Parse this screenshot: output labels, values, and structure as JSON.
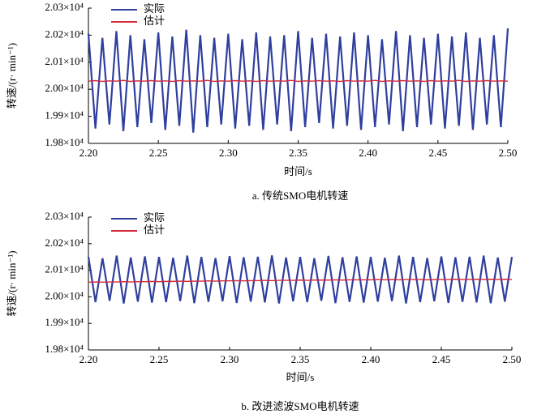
{
  "chart_data": [
    {
      "type": "line",
      "caption": "a. 传统SMO电机转速",
      "xlabel": "时间/s",
      "ylabel": "转速/(r· min⁻¹)",
      "legend": "upper left",
      "xlim": [
        2.2,
        2.5
      ],
      "ylim": [
        19800,
        20300
      ],
      "xticks": [
        {
          "value": 2.2,
          "label": "2.20"
        },
        {
          "value": 2.25,
          "label": "2.25"
        },
        {
          "value": 2.3,
          "label": "2.30"
        },
        {
          "value": 2.35,
          "label": "2.35"
        },
        {
          "value": 2.4,
          "label": "2.40"
        },
        {
          "value": 2.45,
          "label": "2.45"
        },
        {
          "value": 2.5,
          "label": "2.50"
        }
      ],
      "yticks": [
        {
          "value": 19800,
          "label": "1.98×10⁴"
        },
        {
          "value": 19900,
          "label": "1.99×10⁴"
        },
        {
          "value": 20000,
          "label": "2.00×10⁴"
        },
        {
          "value": 20100,
          "label": "2.01×10⁴"
        },
        {
          "value": 20200,
          "label": "2.02×10⁴"
        },
        {
          "value": 20300,
          "label": "2.03×10⁴"
        }
      ],
      "x": [
        2.2,
        2.205,
        2.21,
        2.215,
        2.22,
        2.225,
        2.23,
        2.235,
        2.24,
        2.245,
        2.25,
        2.255,
        2.26,
        2.265,
        2.27,
        2.275,
        2.28,
        2.285,
        2.29,
        2.295,
        2.3,
        2.305,
        2.31,
        2.315,
        2.32,
        2.325,
        2.33,
        2.335,
        2.34,
        2.345,
        2.35,
        2.355,
        2.36,
        2.365,
        2.37,
        2.375,
        2.38,
        2.385,
        2.39,
        2.395,
        2.4,
        2.405,
        2.41,
        2.415,
        2.42,
        2.425,
        2.43,
        2.435,
        2.44,
        2.445,
        2.45,
        2.455,
        2.46,
        2.465,
        2.47,
        2.475,
        2.48,
        2.485,
        2.49,
        2.495,
        2.5
      ],
      "series": [
        {
          "name": "实际",
          "color": "#2f3f9e",
          "values": [
            20205,
            19855,
            20190,
            19870,
            20215,
            19845,
            20200,
            19860,
            20185,
            19875,
            20210,
            19850,
            20195,
            19865,
            20220,
            19840,
            20200,
            19860,
            20190,
            19870,
            20205,
            19855,
            20185,
            19865,
            20210,
            19850,
            20195,
            19870,
            20200,
            19845,
            20215,
            19860,
            20190,
            19875,
            20205,
            19855,
            20195,
            19865,
            20210,
            19850,
            20200,
            19860,
            20185,
            19870,
            20215,
            19845,
            20200,
            19860,
            20190,
            19870,
            20205,
            19855,
            20195,
            19865,
            20210,
            19850,
            20190,
            19870,
            20200,
            19860,
            20225
          ]
        },
        {
          "name": "估计",
          "color": "#d42a3a",
          "values": [
            20030,
            20032,
            20029,
            20031,
            20030,
            20033,
            20029,
            20031,
            20030,
            20032,
            20030,
            20031,
            20029,
            20032,
            20030,
            20031,
            20030,
            20033,
            20029,
            20031,
            20030,
            20032,
            20030,
            20031,
            20029,
            20032,
            20030,
            20031,
            20030,
            20033,
            20029,
            20031,
            20030,
            20032,
            20030,
            20031,
            20029,
            20032,
            20030,
            20031,
            20030,
            20033,
            20029,
            20031,
            20030,
            20032,
            20030,
            20031,
            20029,
            20032,
            20030,
            20031,
            20030,
            20033,
            20029,
            20031,
            20030,
            20032,
            20030,
            20031,
            20030
          ]
        }
      ]
    },
    {
      "type": "line",
      "caption": "b. 改进滤波SMO电机转速",
      "xlabel": "时间/s",
      "ylabel": "转速/(r· min⁻¹)",
      "legend": "upper left",
      "xlim": [
        2.2,
        2.5
      ],
      "ylim": [
        19800,
        20300
      ],
      "xticks": [
        {
          "value": 2.2,
          "label": "2.20"
        },
        {
          "value": 2.25,
          "label": "2.25"
        },
        {
          "value": 2.3,
          "label": "2.30"
        },
        {
          "value": 2.35,
          "label": "2.35"
        },
        {
          "value": 2.4,
          "label": "2.40"
        },
        {
          "value": 2.45,
          "label": "2.45"
        },
        {
          "value": 2.5,
          "label": "2.50"
        }
      ],
      "yticks": [
        {
          "value": 19800,
          "label": "1.98×10⁴"
        },
        {
          "value": 19900,
          "label": "1.99×10⁴"
        },
        {
          "value": 20000,
          "label": "2.00×10⁴"
        },
        {
          "value": 20100,
          "label": "2.01×10⁴"
        },
        {
          "value": 20200,
          "label": "2.02×10⁴"
        },
        {
          "value": 20300,
          "label": "2.03×10⁴"
        }
      ],
      "x": [
        2.2,
        2.205,
        2.21,
        2.215,
        2.22,
        2.225,
        2.23,
        2.235,
        2.24,
        2.245,
        2.25,
        2.255,
        2.26,
        2.265,
        2.27,
        2.275,
        2.28,
        2.285,
        2.29,
        2.295,
        2.3,
        2.305,
        2.31,
        2.315,
        2.32,
        2.325,
        2.33,
        2.335,
        2.34,
        2.345,
        2.35,
        2.355,
        2.36,
        2.365,
        2.37,
        2.375,
        2.38,
        2.385,
        2.39,
        2.395,
        2.4,
        2.405,
        2.41,
        2.415,
        2.42,
        2.425,
        2.43,
        2.435,
        2.44,
        2.445,
        2.45,
        2.455,
        2.46,
        2.465,
        2.47,
        2.475,
        2.48,
        2.485,
        2.49,
        2.495,
        2.5
      ],
      "series": [
        {
          "name": "实际",
          "color": "#2f3f9e",
          "values": [
            20150,
            19980,
            20145,
            19985,
            20155,
            19975,
            20148,
            19982,
            20152,
            19978,
            20150,
            19980,
            20147,
            19984,
            20155,
            19976,
            20150,
            19981,
            20146,
            19983,
            20153,
            19977,
            20149,
            19982,
            20151,
            19979,
            20156,
            19975,
            20148,
            19983,
            20150,
            19980,
            20145,
            19985,
            20154,
            19976,
            20149,
            19981,
            20152,
            19978,
            20150,
            19982,
            20147,
            19984,
            20155,
            19975,
            20150,
            19980,
            20146,
            19983,
            20152,
            19977,
            20149,
            19981,
            20151,
            19979,
            20155,
            19976,
            20148,
            19982,
            20150
          ]
        },
        {
          "name": "估计",
          "color": "#d42a3a",
          "values": [
            20055,
            20056,
            20055,
            20056,
            20056,
            20057,
            20056,
            20057,
            20057,
            20058,
            20057,
            20058,
            20058,
            20059,
            20058,
            20059,
            20059,
            20060,
            20059,
            20060,
            20060,
            20061,
            20060,
            20061,
            20061,
            20062,
            20061,
            20062,
            20062,
            20062,
            20063,
            20062,
            20063,
            20063,
            20063,
            20064,
            20063,
            20064,
            20064,
            20064,
            20064,
            20065,
            20064,
            20065,
            20064,
            20065,
            20065,
            20065,
            20064,
            20065,
            20065,
            20065,
            20066,
            20065,
            20065,
            20066,
            20065,
            20066,
            20065,
            20066,
            20065
          ]
        }
      ]
    }
  ]
}
